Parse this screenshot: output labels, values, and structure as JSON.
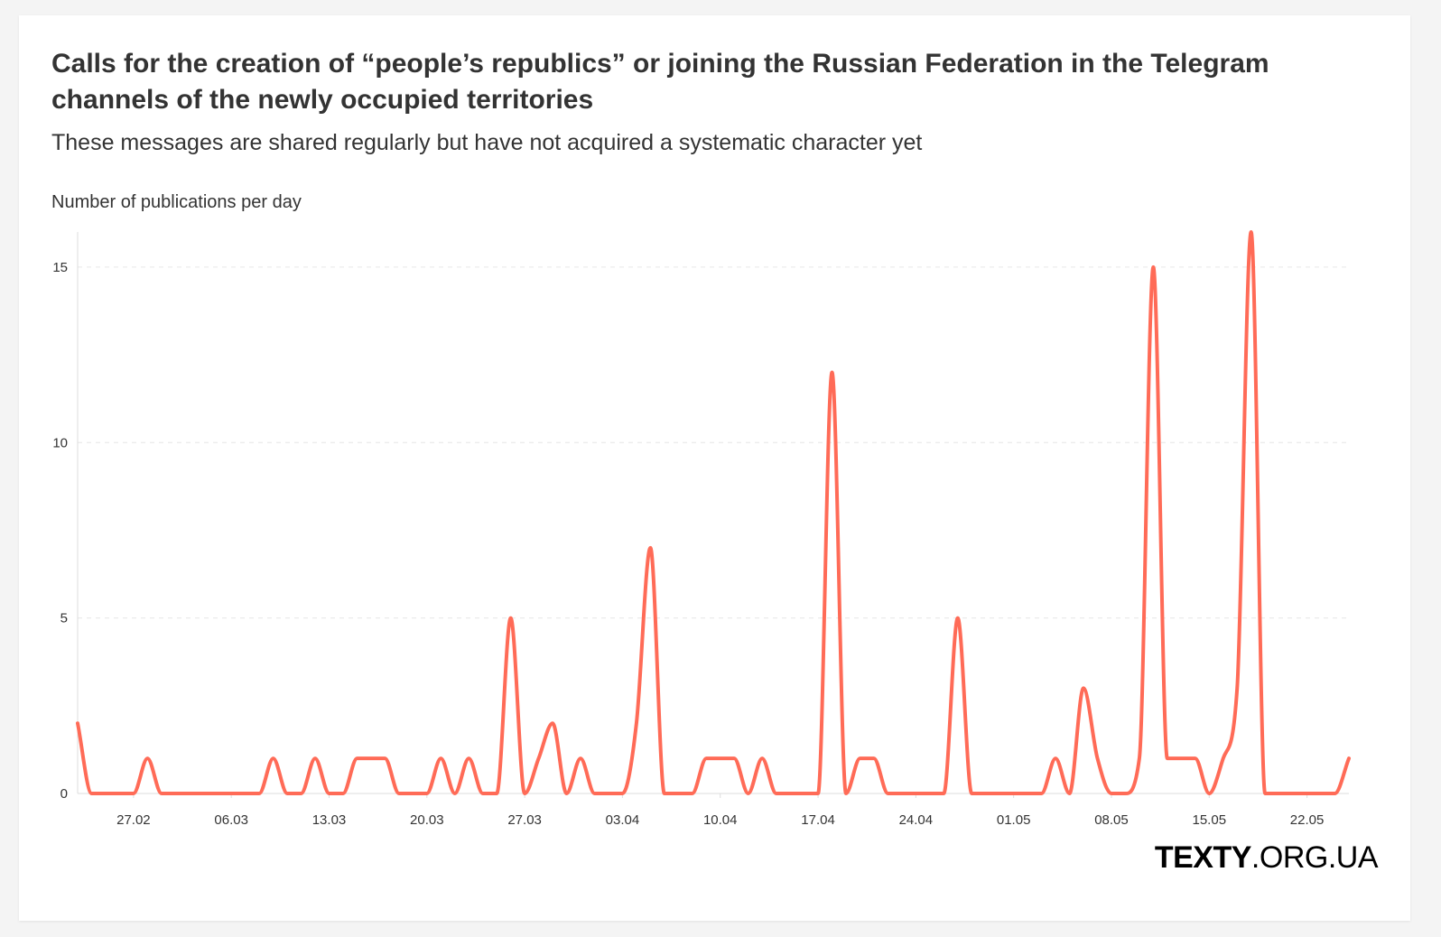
{
  "header": {
    "title": "Calls for the creation of “people’s republics” or joining the Russian Federation in the Telegram channels of the newly occupied territories",
    "subtitle": "These messages are shared regularly but have not acquired a systematic character yet"
  },
  "brand": {
    "strong": "TEXTY",
    "light": ".ORG.UA"
  },
  "colors": {
    "line": "#ff6b57",
    "grid": "#e6e6e6",
    "axis": "#dddddd"
  },
  "chart_data": {
    "type": "line",
    "title": "Calls for the creation of “people’s republics” or joining the Russian Federation in the Telegram channels of the newly occupied territories",
    "subtitle": "These messages are shared regularly but have not acquired a systematic character yet",
    "ylabel": "Number of publications per day",
    "xlabel": "",
    "ylim": [
      0,
      16
    ],
    "yticks": [
      0,
      5,
      10,
      15
    ],
    "xlim": [
      "2022-02-23",
      "2022-05-25"
    ],
    "xtick_labels": [
      "27.02",
      "06.03",
      "13.03",
      "20.03",
      "27.03",
      "03.04",
      "10.04",
      "17.04",
      "24.04",
      "01.05",
      "08.05",
      "15.05",
      "22.05"
    ],
    "xtick_dates": [
      "2022-02-27",
      "2022-03-06",
      "2022-03-13",
      "2022-03-20",
      "2022-03-27",
      "2022-04-03",
      "2022-04-10",
      "2022-04-17",
      "2022-04-24",
      "2022-05-01",
      "2022-05-08",
      "2022-05-15",
      "2022-05-22"
    ],
    "grid": true,
    "legend": "none",
    "series": [
      {
        "x": [
          "2022-02-23",
          "2022-02-24",
          "2022-02-25",
          "2022-02-26",
          "2022-02-27",
          "2022-02-28",
          "2022-03-01",
          "2022-03-02",
          "2022-03-03",
          "2022-03-04",
          "2022-03-05",
          "2022-03-06",
          "2022-03-07",
          "2022-03-08",
          "2022-03-09",
          "2022-03-10",
          "2022-03-11",
          "2022-03-12",
          "2022-03-13",
          "2022-03-14",
          "2022-03-15",
          "2022-03-16",
          "2022-03-17",
          "2022-03-18",
          "2022-03-19",
          "2022-03-20",
          "2022-03-21",
          "2022-03-22",
          "2022-03-23",
          "2022-03-24",
          "2022-03-25",
          "2022-03-26",
          "2022-03-27",
          "2022-03-28",
          "2022-03-29",
          "2022-03-30",
          "2022-03-31",
          "2022-04-01",
          "2022-04-02",
          "2022-04-03",
          "2022-04-04",
          "2022-04-05",
          "2022-04-06",
          "2022-04-07",
          "2022-04-08",
          "2022-04-09",
          "2022-04-10",
          "2022-04-11",
          "2022-04-12",
          "2022-04-13",
          "2022-04-14",
          "2022-04-15",
          "2022-04-16",
          "2022-04-17",
          "2022-04-18",
          "2022-04-19",
          "2022-04-20",
          "2022-04-21",
          "2022-04-22",
          "2022-04-23",
          "2022-04-24",
          "2022-04-25",
          "2022-04-26",
          "2022-04-27",
          "2022-04-28",
          "2022-04-29",
          "2022-04-30",
          "2022-05-01",
          "2022-05-02",
          "2022-05-03",
          "2022-05-04",
          "2022-05-05",
          "2022-05-06",
          "2022-05-07",
          "2022-05-08",
          "2022-05-09",
          "2022-05-10",
          "2022-05-11",
          "2022-05-12",
          "2022-05-13",
          "2022-05-14",
          "2022-05-15",
          "2022-05-16",
          "2022-05-17",
          "2022-05-18",
          "2022-05-19",
          "2022-05-20",
          "2022-05-21",
          "2022-05-22",
          "2022-05-23",
          "2022-05-24",
          "2022-05-25"
        ],
        "values": [
          2,
          0,
          0,
          0,
          0,
          1,
          0,
          0,
          0,
          0,
          0,
          0,
          0,
          0,
          1,
          0,
          0,
          1,
          0,
          0,
          1,
          1,
          1,
          0,
          0,
          0,
          1,
          0,
          1,
          0,
          0,
          5,
          0,
          1,
          2,
          0,
          1,
          0,
          0,
          0,
          2,
          7,
          0,
          0,
          0,
          1,
          1,
          1,
          0,
          1,
          0,
          0,
          0,
          0,
          12,
          0,
          1,
          1,
          0,
          0,
          0,
          0,
          0,
          5,
          0,
          0,
          0,
          0,
          0,
          0,
          1,
          0,
          3,
          1,
          0,
          0,
          1,
          15,
          1,
          1,
          1,
          0,
          1,
          3,
          16,
          0,
          0,
          0,
          0,
          0,
          0,
          1
        ]
      }
    ]
  }
}
